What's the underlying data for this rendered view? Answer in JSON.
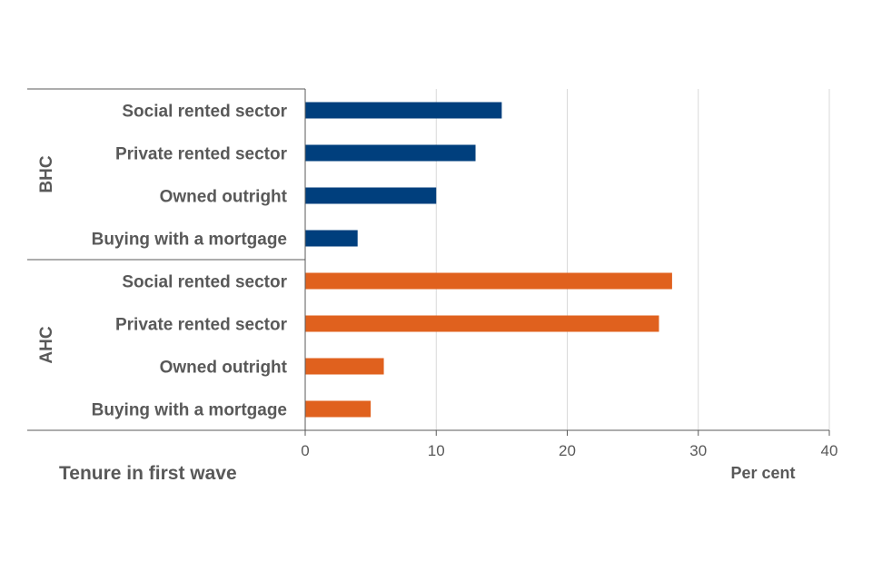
{
  "chart_data": {
    "type": "bar",
    "orientation": "horizontal",
    "groups": [
      {
        "name": "BHC",
        "color": "#003f7d",
        "categories": [
          "Social rented sector",
          "Private rented sector",
          "Owned outright",
          "Buying with a mortgage"
        ],
        "values": [
          15,
          13,
          10,
          4
        ]
      },
      {
        "name": "AHC",
        "color": "#e0611e",
        "categories": [
          "Social rented sector",
          "Private rented sector",
          "Owned outright",
          "Buying with a mortgage"
        ],
        "values": [
          28,
          27,
          6,
          5
        ]
      }
    ],
    "xlim": [
      0,
      40
    ],
    "xticks": [
      0,
      10,
      20,
      30,
      40
    ],
    "xlabel": "Per cent",
    "ylabel": "Tenure in first wave",
    "grid": true,
    "gridColor": "#d9d9d9",
    "axisColor": "#595959"
  }
}
